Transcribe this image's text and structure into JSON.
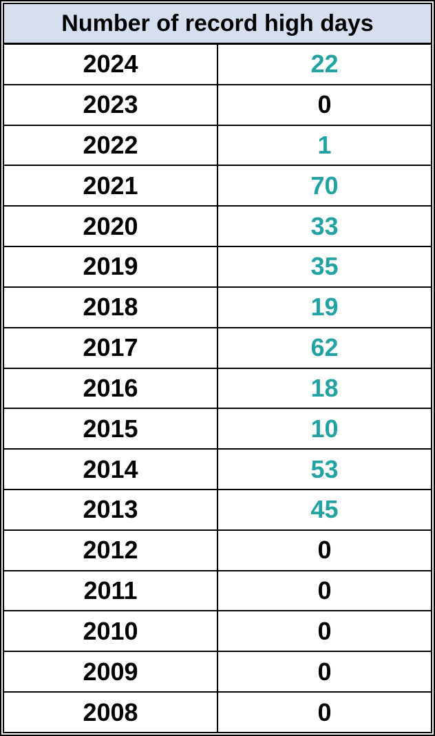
{
  "chart_data": {
    "type": "table",
    "title": "Number of record high days",
    "highlight_color": "#22A2A2",
    "header_background": "#D6DFF0",
    "rows": [
      {
        "year": "2024",
        "value": 22
      },
      {
        "year": "2023",
        "value": 0
      },
      {
        "year": "2022",
        "value": 1
      },
      {
        "year": "2021",
        "value": 70
      },
      {
        "year": "2020",
        "value": 33
      },
      {
        "year": "2019",
        "value": 35
      },
      {
        "year": "2018",
        "value": 19
      },
      {
        "year": "2017",
        "value": 62
      },
      {
        "year": "2016",
        "value": 18
      },
      {
        "year": "2015",
        "value": 10
      },
      {
        "year": "2014",
        "value": 53
      },
      {
        "year": "2013",
        "value": 45
      },
      {
        "year": "2012",
        "value": 0
      },
      {
        "year": "2011",
        "value": 0
      },
      {
        "year": "2010",
        "value": 0
      },
      {
        "year": "2009",
        "value": 0
      },
      {
        "year": "2008",
        "value": 0
      }
    ]
  }
}
